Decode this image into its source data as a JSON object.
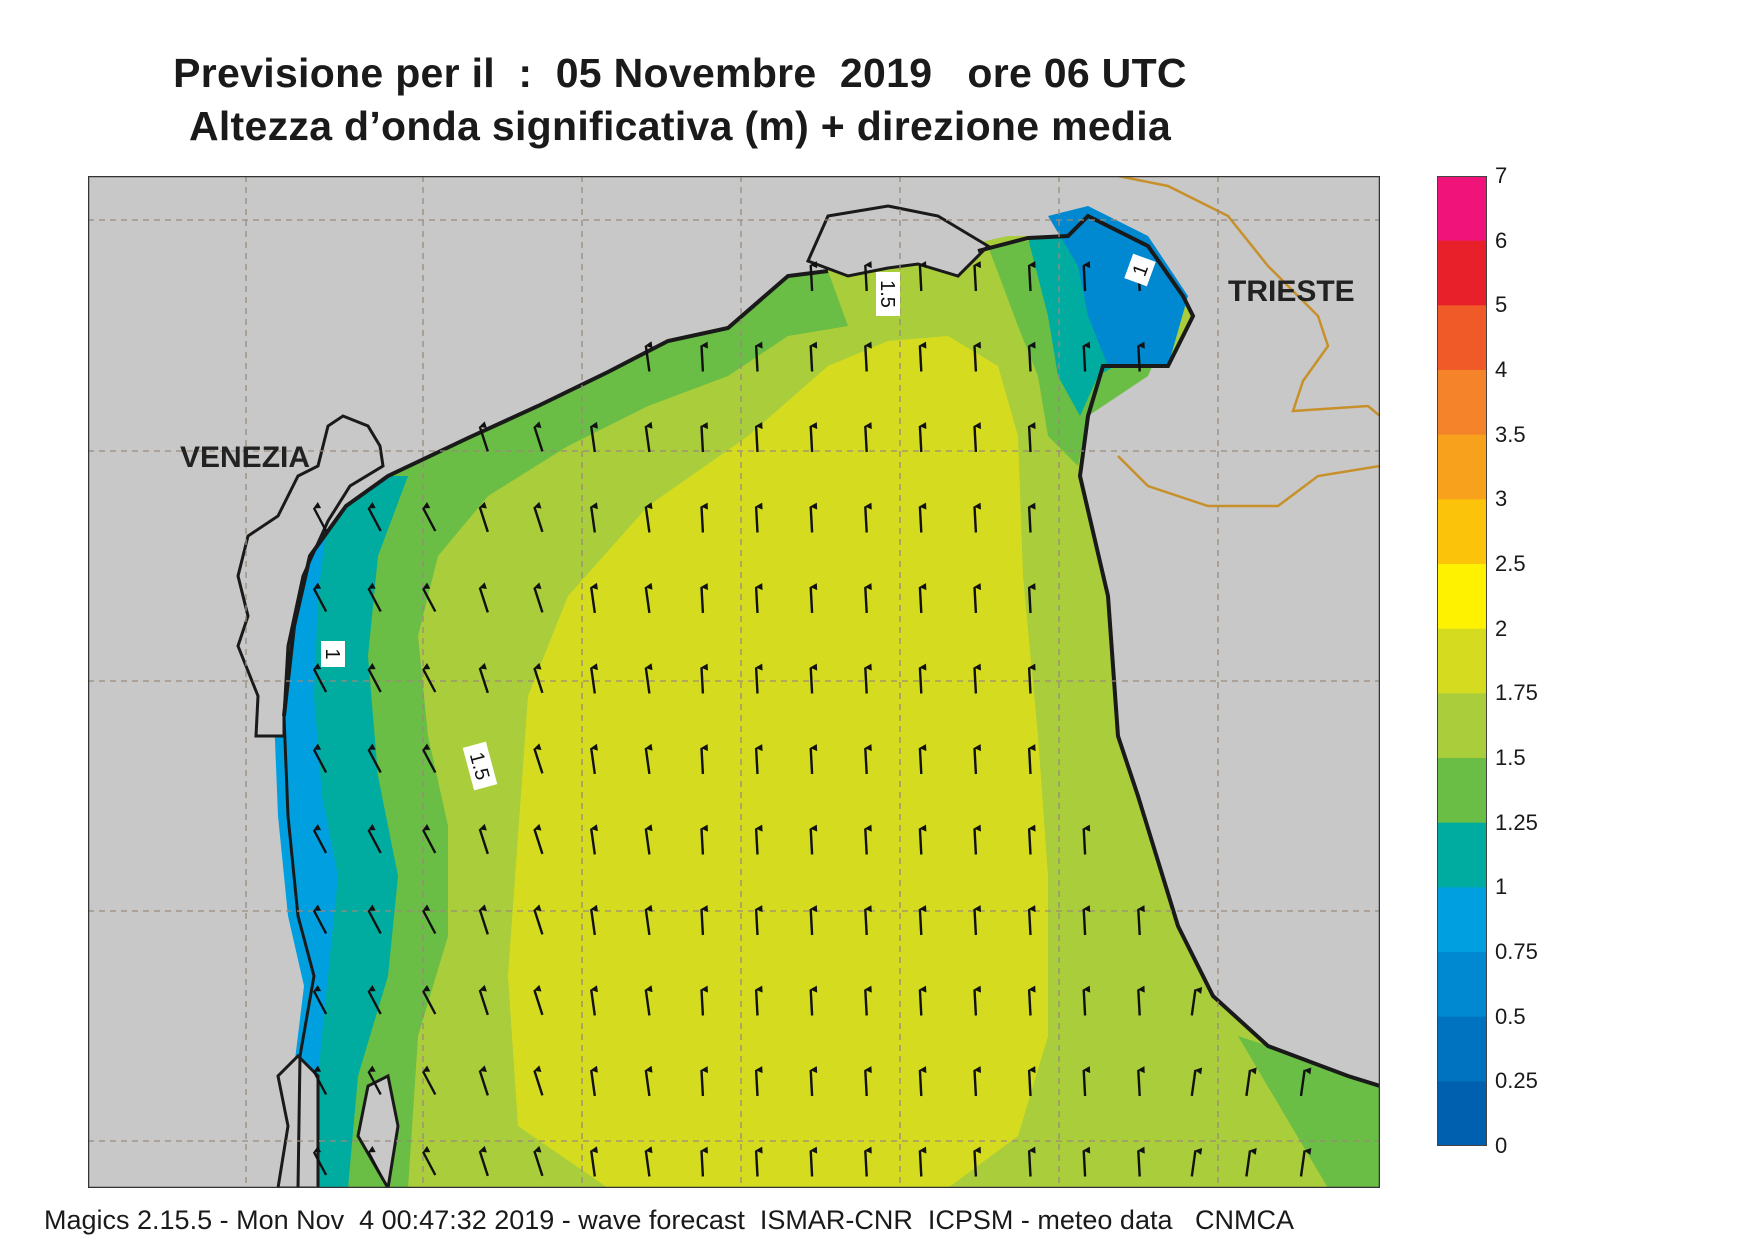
{
  "title": {
    "line1": "Previsione per il  :  05 Novembre  2019   ore 06 UTC",
    "line2": "Altezza d’onda significativa (m) + direzione media"
  },
  "places": {
    "venezia": "VENEZIA",
    "trieste": "TRIESTE"
  },
  "contour_labels": [
    "1.5",
    "1",
    "1",
    "1.5"
  ],
  "legend": {
    "labels": [
      "7",
      "6",
      "5",
      "4",
      "3.5",
      "3",
      "2.5",
      "2",
      "1.75",
      "1.5",
      "1.25",
      "1",
      "0.75",
      "0.5",
      "0.25",
      "0"
    ],
    "colors": [
      "#f0147a",
      "#e8202a",
      "#f05a28",
      "#f5832a",
      "#f7a11c",
      "#fbc30a",
      "#fef200",
      "#d5dc20",
      "#a9cd3b",
      "#6abd45",
      "#00ac9f",
      "#00a0e0",
      "#0089d0",
      "#0073c0",
      "#0060b0"
    ]
  },
  "map_colors": {
    "land": "#c8c8c8",
    "coast": "#1a1a1a",
    "border": "#c8902a",
    "grid": "#9a8a7a",
    "arrow": "#111111"
  },
  "footer": "Magics 2.15.5 - Mon Nov  4 00:47:32 2019 - wave forecast  ISMAR-CNR  ICPSM - meteo data   CNMCA"
}
